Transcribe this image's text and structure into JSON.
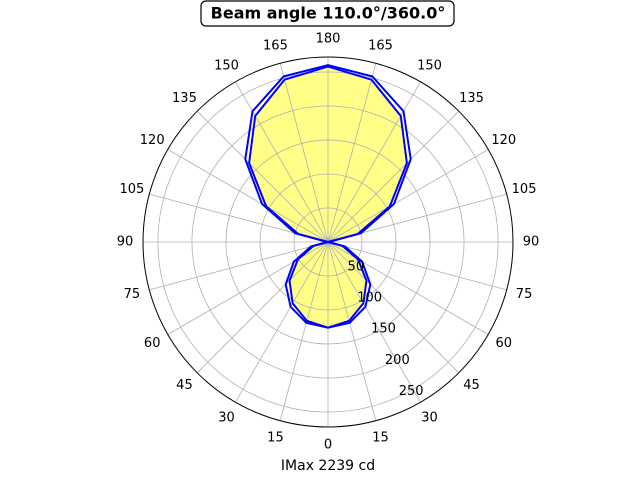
{
  "chart_data": {
    "type": "polar",
    "title": "Beam angle 110.0°/360.0°",
    "xlabel": "IMax 2239 cd",
    "theta": [
      0,
      15,
      30,
      45,
      60,
      75,
      90,
      105,
      120,
      135,
      150,
      165,
      180,
      195,
      210,
      225,
      240,
      255,
      270,
      285,
      300,
      315,
      330,
      345,
      360
    ],
    "series": [
      {
        "color": "#0000ff",
        "values": [
          126,
          120,
          104,
          80,
          51,
          22,
          0,
          45,
          105,
          164,
          214,
          247,
          258,
          247,
          214,
          164,
          105,
          45,
          0,
          22,
          51,
          80,
          104,
          120,
          126
        ]
      },
      {
        "color": "#0000ff",
        "values": [
          126,
          123,
          110,
          88,
          58,
          26,
          0,
          50,
          112,
          172,
          222,
          252,
          260,
          252,
          222,
          172,
          112,
          50,
          0,
          26,
          58,
          88,
          110,
          123,
          126
        ]
      }
    ],
    "fill_color": "#ffff88",
    "rlim": [
      0,
      272
    ],
    "rticks": [
      50,
      100,
      150,
      200,
      250
    ],
    "thetaticks": [
      0,
      15,
      30,
      45,
      60,
      75,
      90,
      105,
      120,
      135,
      150,
      165,
      180,
      {
        "value": 195,
        "label": "165"
      },
      {
        "value": 210,
        "label": "150"
      },
      {
        "value": 225,
        "label": "135"
      },
      {
        "value": 240,
        "label": "120"
      },
      {
        "value": 255,
        "label": "105"
      },
      {
        "value": 270,
        "label": "90"
      },
      {
        "value": 285,
        "label": "75"
      },
      {
        "value": 300,
        "label": "60"
      },
      {
        "value": 315,
        "label": "45"
      },
      {
        "value": 330,
        "label": "30"
      },
      {
        "value": 345,
        "label": "15"
      }
    ],
    "grid": true
  }
}
